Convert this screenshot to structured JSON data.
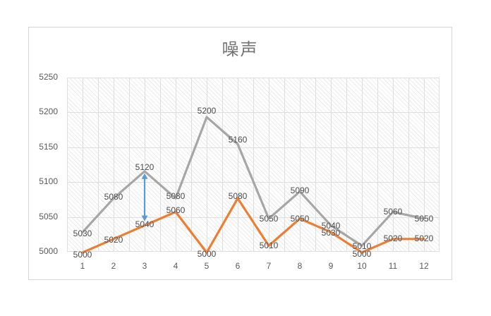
{
  "title": "噪声",
  "colors": {
    "series_gray": "#a6a6a6",
    "series_orange": "#ed7d31",
    "arrow_blue": "#5b9bd5",
    "gridline": "#dedede",
    "frame_border": "#d6d6d6",
    "title_text": "#737373",
    "axis_text": "#595959",
    "label_text": "#4a4a4a"
  },
  "chart_data": {
    "type": "line",
    "title": "噪声",
    "categories": [
      "1",
      "2",
      "3",
      "4",
      "5",
      "6",
      "7",
      "8",
      "9",
      "10",
      "11",
      "12"
    ],
    "series": [
      {
        "name": "series1-gray",
        "color": "#a6a6a6",
        "values": [
          5030,
          5080,
          5120,
          5080,
          5200,
          5160,
          5050,
          5090,
          5040,
          5010,
          5060,
          5050
        ]
      },
      {
        "name": "series2-orange",
        "color": "#ed7d31",
        "values": [
          5000,
          5020,
          5040,
          5060,
          5000,
          5080,
          5010,
          5050,
          5030,
          5000,
          5020,
          5020
        ]
      }
    ],
    "data_labels_visible": true,
    "xlabel": "",
    "ylabel": "",
    "ylim": [
      5000,
      5250
    ],
    "yticks": [
      5000,
      5050,
      5100,
      5150,
      5200,
      5250
    ],
    "grid": true,
    "legend": "none",
    "annotation": {
      "kind": "vertical-double-arrow",
      "category": "3",
      "from_value": 5040,
      "to_value": 5120,
      "color": "#5b9bd5"
    }
  }
}
